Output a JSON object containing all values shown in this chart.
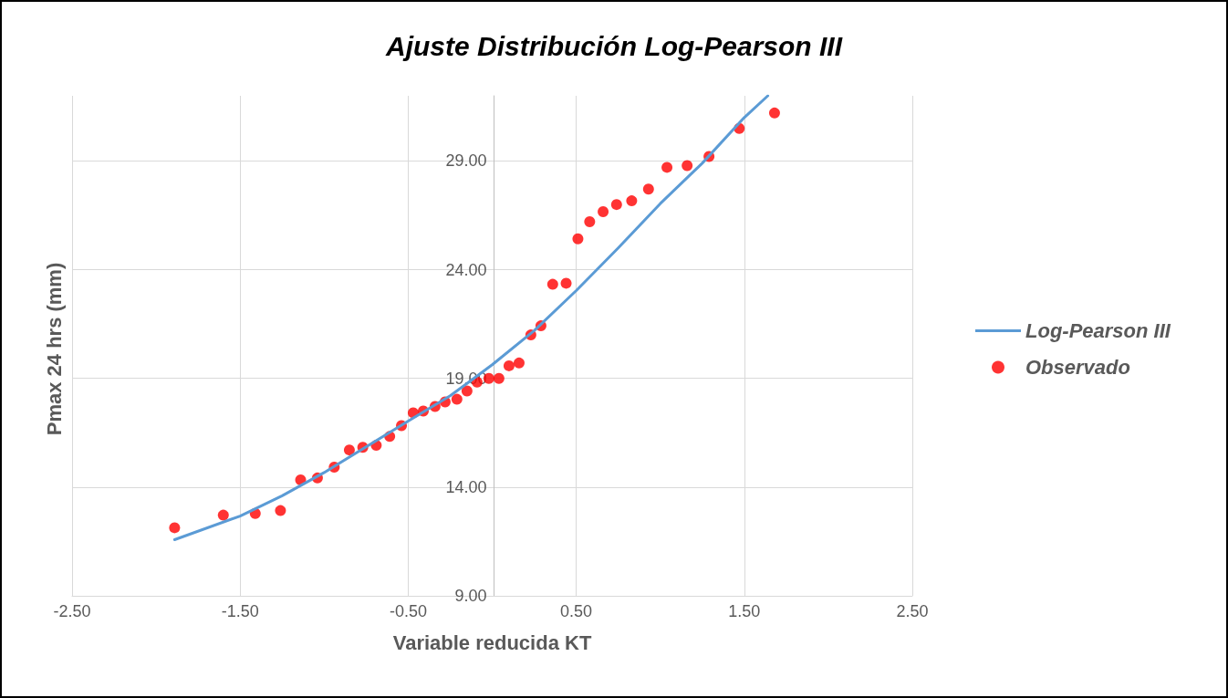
{
  "chart_data": {
    "type": "scatter",
    "title": "Ajuste Distribución Log-Pearson III",
    "xlabel": "Variable reducida KT",
    "ylabel": "Pmax 24 hrs (mm)",
    "xlim": [
      -2.5,
      2.5
    ],
    "xticks": [
      {
        "value": -2.5,
        "label": "-2.50"
      },
      {
        "value": -1.5,
        "label": "-1.50"
      },
      {
        "value": -0.5,
        "label": "-0.50"
      },
      {
        "value": 0.5,
        "label": "0.50"
      },
      {
        "value": 1.5,
        "label": "1.50"
      },
      {
        "value": 2.5,
        "label": "2.50"
      }
    ],
    "ylim": [
      9,
      32
    ],
    "yticks": [
      {
        "value": 9,
        "label": "9.00"
      },
      {
        "value": 14,
        "label": "14.00"
      },
      {
        "value": 19,
        "label": "19.00"
      },
      {
        "value": 24,
        "label": "24.00"
      },
      {
        "value": 29,
        "label": "29.00"
      }
    ],
    "grid": true,
    "legend": "right",
    "series": [
      {
        "name": "Log-Pearson III",
        "type": "line",
        "color": "#5b9bd5",
        "marker": "none",
        "line_style": "solid",
        "x": [
          -1.89,
          -1.5,
          -1.25,
          -1.0,
          -0.5,
          -0.25,
          0,
          0.25,
          0.5,
          0.75,
          1.0,
          1.25,
          1.5,
          1.64
        ],
        "values": [
          11.58,
          12.67,
          13.6,
          14.67,
          17.04,
          18.2,
          19.63,
          21.2,
          23.04,
          25.0,
          27.04,
          28.9,
          31.0,
          32.0
        ]
      },
      {
        "name": "Observado",
        "color": "#ff0000",
        "marker": "circle",
        "x": [
          -1.89,
          -1.6,
          -1.41,
          -1.26,
          -1.14,
          -1.04,
          -0.94,
          -0.85,
          -0.77,
          -0.69,
          -0.61,
          -0.54,
          -0.47,
          -0.41,
          -0.34,
          -0.28,
          -0.21,
          -0.15,
          -0.09,
          -0.02,
          0.04,
          0.1,
          0.16,
          0.23,
          0.29,
          0.36,
          0.44,
          0.51,
          0.58,
          0.66,
          0.74,
          0.83,
          0.93,
          1.04,
          1.16,
          1.29,
          1.47,
          1.68
        ],
        "values": [
          12.13,
          12.71,
          12.79,
          12.92,
          14.33,
          14.42,
          14.92,
          15.71,
          15.83,
          15.92,
          16.33,
          16.83,
          17.42,
          17.5,
          17.71,
          17.92,
          18.04,
          18.42,
          18.83,
          19.0,
          19.0,
          19.58,
          19.71,
          21.0,
          21.42,
          23.33,
          23.38,
          25.42,
          26.21,
          26.67,
          27.0,
          27.17,
          27.71,
          28.71,
          28.79,
          29.21,
          30.5,
          31.21
        ]
      }
    ]
  }
}
